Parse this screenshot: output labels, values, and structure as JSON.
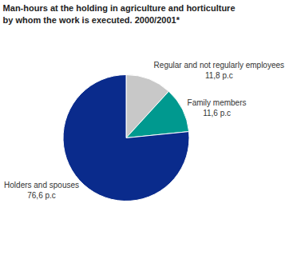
{
  "chart_data": {
    "type": "pie",
    "title": "Man-hours at the holding in agriculture and horticulture by whom the work is executed. 2000/2001*",
    "categories": [
      "Regular and not regularly employees",
      "Family members",
      "Holders and spouses"
    ],
    "values": [
      11.8,
      11.6,
      76.6
    ],
    "value_labels": [
      "11,8 p.c",
      "11,6 p.c",
      "76,6 p.c"
    ],
    "colors": [
      "#c8c8c8",
      "#00998f",
      "#0a2b8c"
    ],
    "data_labels": true
  }
}
